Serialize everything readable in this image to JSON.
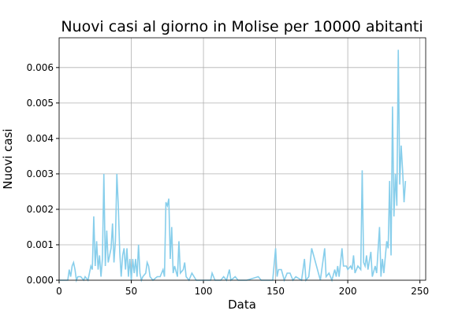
{
  "chart_data": {
    "type": "line",
    "title": "Nuovi casi al giorno in Molise per 10000 abitanti",
    "x_label": "Data",
    "y_label": "Nuovi casi",
    "color": "#87ceeb",
    "grid": true,
    "xlim": [
      0,
      254
    ],
    "ylim": [
      0,
      0.00684
    ],
    "xticks": [
      0,
      50,
      100,
      150,
      200,
      250
    ],
    "yticks": [
      {
        "value": 0,
        "label": "0.000"
      },
      0.001,
      0.002,
      0.003,
      0.004,
      0.005,
      0.006
    ],
    "x": [
      0,
      6,
      7,
      8,
      9,
      10,
      11,
      12,
      13,
      15,
      17,
      18,
      20,
      22,
      23,
      24,
      25,
      26,
      27,
      28,
      29,
      30,
      31,
      32,
      33,
      34,
      35,
      36,
      37,
      38,
      39,
      40,
      41,
      42,
      43,
      44,
      45,
      46,
      47,
      48,
      49,
      50,
      51,
      52,
      53,
      54,
      55,
      56,
      57,
      58,
      60,
      61,
      62,
      63,
      65,
      68,
      70,
      72,
      73,
      74,
      75,
      76,
      77,
      78,
      79,
      80,
      82,
      83,
      84,
      86,
      87,
      88,
      90,
      92,
      95,
      105,
      106,
      108,
      112,
      114,
      116,
      118,
      119,
      122,
      124,
      130,
      138,
      140,
      148,
      150,
      151,
      152,
      154,
      156,
      158,
      160,
      162,
      164,
      168,
      170,
      171,
      173,
      175,
      177,
      179,
      181,
      183,
      184,
      185,
      187,
      189,
      191,
      192,
      193,
      194,
      196,
      197,
      199,
      200,
      202,
      203,
      204,
      205,
      207,
      209,
      210,
      211,
      212,
      213,
      214,
      216,
      217,
      219,
      220,
      222,
      223,
      224,
      225,
      227,
      228,
      229,
      230,
      231,
      232,
      233,
      234,
      235,
      236,
      237,
      238,
      239,
      240
    ],
    "values": [
      0,
      0,
      0.0003,
      0.0001,
      0.0004,
      0.0005,
      0.0003,
      0,
      0.0001,
      0.0001,
      0,
      0.0001,
      0,
      0.0004,
      0.0003,
      0.0018,
      0.0004,
      0.0011,
      0.0003,
      0.0007,
      0.0001,
      0.0006,
      0.003,
      0.0004,
      0.0014,
      0.0005,
      0.0007,
      0.0009,
      0.0016,
      0.0005,
      0.0011,
      0.003,
      0.0021,
      0.0008,
      0.0001,
      0.0007,
      0.0009,
      0.0003,
      0.0009,
      0.0001,
      0.0006,
      0,
      0.0006,
      0.0002,
      0.0006,
      0.0001,
      0.001,
      0.0002,
      0,
      0.0001,
      0.0002,
      0.0005,
      0.0004,
      0.0001,
      0,
      0.0001,
      0.0001,
      0.0003,
      0.0001,
      0.0022,
      0.0021,
      0.0023,
      0.0006,
      0.0015,
      0.0002,
      0.0004,
      0.0001,
      0.0011,
      0.0002,
      0.0003,
      0.0005,
      0.0001,
      0,
      0.0002,
      0,
      0,
      0.0002,
      0,
      0,
      0.0001,
      0,
      0.0003,
      0,
      0.0001,
      0,
      0,
      0.0001,
      0,
      0,
      0.0009,
      0.0001,
      0.0003,
      0.0003,
      0,
      0.0002,
      0.0002,
      0,
      0.0001,
      0,
      0.0006,
      0,
      0.0001,
      0.0009,
      0.0006,
      0.0003,
      0,
      0.0006,
      0.0009,
      0.0001,
      0.0002,
      0,
      0.0003,
      0.0001,
      0.0004,
      0.0001,
      0.0009,
      0.0004,
      0.0004,
      0.0003,
      0.0004,
      0.0003,
      0.0007,
      0.0002,
      0.0004,
      0.0003,
      0.0031,
      0.0005,
      0.0004,
      0.0007,
      0.0003,
      0.0008,
      0.0001,
      0.0004,
      0.0002,
      0.0015,
      0.0001,
      0.0006,
      0.0002,
      0.0011,
      0.0009,
      0.0028,
      0.0007,
      0.0049,
      0.0018,
      0.003,
      0.0021,
      0.0065,
      0.0027,
      0.0038,
      0.0031,
      0.0022,
      0.0028
    ]
  }
}
